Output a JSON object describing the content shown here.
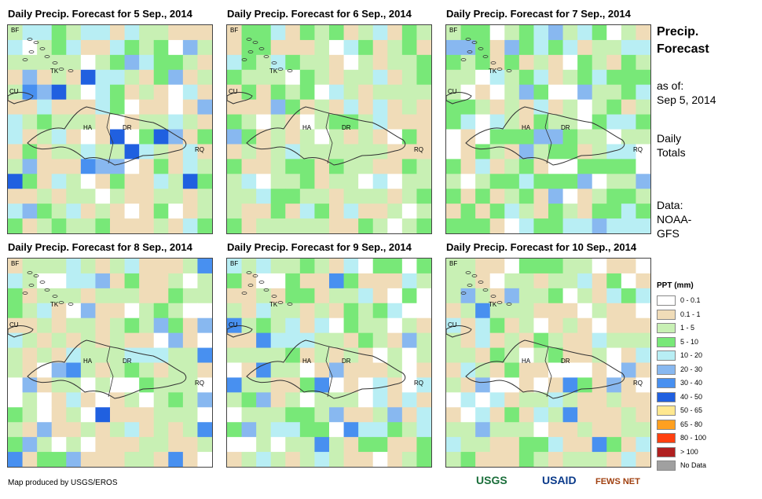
{
  "panels": [
    {
      "title": "Daily Precip. Forecast for 5 Sep., 2014"
    },
    {
      "title": "Daily Precip. Forecast for 6 Sep., 2014"
    },
    {
      "title": "Daily Precip. Forecast for 7 Sep., 2014"
    },
    {
      "title": "Daily Precip. Forecast for 8 Sep., 2014"
    },
    {
      "title": "Daily Precip. Forecast for 9 Sep., 2014"
    },
    {
      "title": "Daily Precip. Forecast for 10 Sep., 2014"
    }
  ],
  "map_labels": {
    "bf": "BF",
    "tk": "TK",
    "cu": "CU",
    "ha": "HA",
    "dr": "DR",
    "rq": "RQ"
  },
  "side": {
    "title_line1": "Precip.",
    "title_line2": "Forecast",
    "asof_line1": "as of:",
    "asof_line2": "Sep 5, 2014",
    "totals_line1": "Daily",
    "totals_line2": "Totals",
    "data_line1": "Data:",
    "data_line2": "NOAA-",
    "data_line3": "GFS"
  },
  "legend": {
    "title": "PPT (mm)",
    "items": [
      {
        "label": "0 - 0.1",
        "color": "#ffffff"
      },
      {
        "label": "0.1 - 1",
        "color": "#f0dcb8"
      },
      {
        "label": "1 - 5",
        "color": "#c8f0b4"
      },
      {
        "label": "5 - 10",
        "color": "#78e878"
      },
      {
        "label": "10 - 20",
        "color": "#b8eef4"
      },
      {
        "label": "20 - 30",
        "color": "#88b8f0"
      },
      {
        "label": "30 - 40",
        "color": "#4890f0"
      },
      {
        "label": "40 - 50",
        "color": "#2060e0"
      },
      {
        "label": "50 - 65",
        "color": "#ffe890"
      },
      {
        "label": "65 - 80",
        "color": "#ffa020"
      },
      {
        "label": "80 - 100",
        "color": "#ff4010"
      },
      {
        "label": "> 100",
        "color": "#b02020"
      },
      {
        "label": "No Data",
        "color": "#a0a0a0"
      }
    ]
  },
  "footer": {
    "credit": "Map produced by USGS/EROS"
  },
  "logos": {
    "usgs": "USGS",
    "usaid": "USAID",
    "fewsnet": "FEWS NET"
  }
}
